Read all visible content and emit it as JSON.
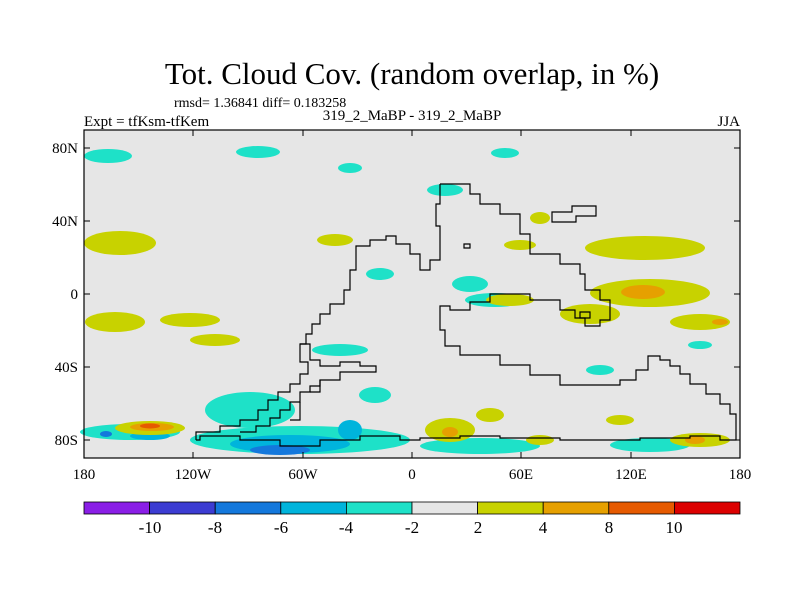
{
  "title": "Tot. Cloud Cov. (random overlap, in %)",
  "stats": "rmsd= 1.36841 diff= 0.183258",
  "experiment": "Expt = tfKsm-tfKem",
  "case": "319_2_MaBP - 319_2_MaBP",
  "season": "JJA",
  "lat_ticks": [
    "80N",
    "40N",
    "0",
    "40S",
    "80S"
  ],
  "lon_ticks": [
    "180",
    "120W",
    "60W",
    "0",
    "60E",
    "120E",
    "180"
  ],
  "colorbar": {
    "labels": [
      "-10",
      "-8",
      "-6",
      "-4",
      "-2",
      "2",
      "4",
      "8",
      "10"
    ],
    "colors": [
      "#8a1ee6",
      "#3c3cd2",
      "#1478dc",
      "#00b4dc",
      "#1ee1c8",
      "#e6e6e6",
      "#c8d200",
      "#e6a000",
      "#e65a00",
      "#dc0000"
    ]
  },
  "colors": {
    "background_field": "#e6e6e6",
    "coastline": "#000000"
  }
}
